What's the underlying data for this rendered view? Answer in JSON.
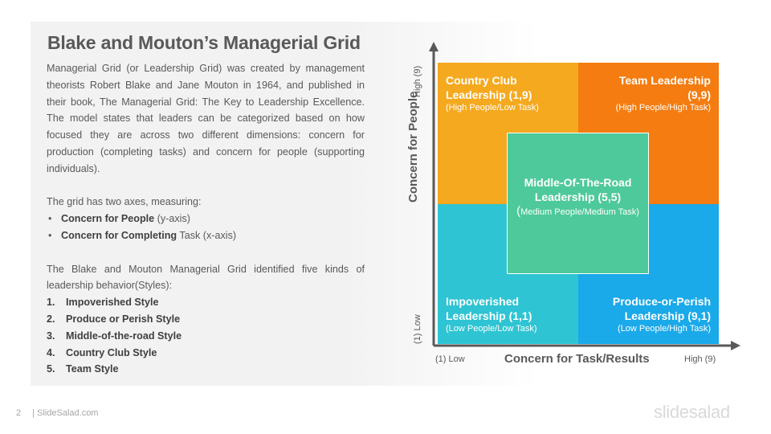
{
  "slide": {
    "title": "Blake and Mouton’s Managerial Grid",
    "intro": "Managerial Grid (or Leadership Grid) was created by management theorists Robert Blake and Jane Mouton in 1964, and published in their book, The Managerial Grid: The Key to Leadership Excellence. The model states that leaders can be categorized based on how focused they are across two different dimensions: concern for production (completing tasks) and concern for people (supporting individuals).",
    "axes_intro": "The grid has two axes, measuring:",
    "axes_items": [
      {
        "bold": "Concern for People",
        "rest": " (y-axis)"
      },
      {
        "bold": "Concern for Completing",
        "rest": " Task (x-axis)"
      }
    ],
    "styles_intro": "The Blake and Mouton Managerial Grid identified five kinds of leadership behavior(Styles):",
    "styles": [
      {
        "num": "1.",
        "label": "Impoverished Style"
      },
      {
        "num": "2.",
        "label": "Produce or Perish Style"
      },
      {
        "num": "3.",
        "label": "Middle-of-the-road  Style"
      },
      {
        "num": "4.",
        "label": "Country Club Style"
      },
      {
        "num": "5.",
        "label": "Team Style"
      }
    ]
  },
  "grid": {
    "y_axis": {
      "title": "Concern for People",
      "low": "(1) Low",
      "high": "High (9)"
    },
    "x_axis": {
      "title": "Concern for Task/Results",
      "low": "(1) Low",
      "high": "High (9)"
    },
    "cells": {
      "country_club": {
        "line1": "Country Club",
        "line2": "Leadership (1,9)",
        "sub": "(High People/Low Task)",
        "color": "#f5a91f"
      },
      "team": {
        "line1": "Team Leadership",
        "line2": "(9,9)",
        "sub": "(High People/High Task)",
        "color": "#f47c10"
      },
      "impoverished": {
        "line1": "Impoverished",
        "line2": "Leadership (1,1)",
        "sub": "(Low People/Low Task)",
        "color": "#2ec4d3"
      },
      "produce_perish": {
        "line1": "Produce-or-Perish",
        "line2": "Leadership (9,1)",
        "sub": "(Low People/High Task)",
        "color": "#1aa9e9"
      },
      "middle": {
        "line1": "Middle-Of-The-Road",
        "line2": "Leadership (5,5)",
        "sub_paren": "(",
        "sub": "Medium People/Medium Task)",
        "color": "#4ec99b"
      }
    }
  },
  "footer": {
    "page": "2",
    "site": "| SlideSalad.com",
    "logo": "slidesalad"
  }
}
